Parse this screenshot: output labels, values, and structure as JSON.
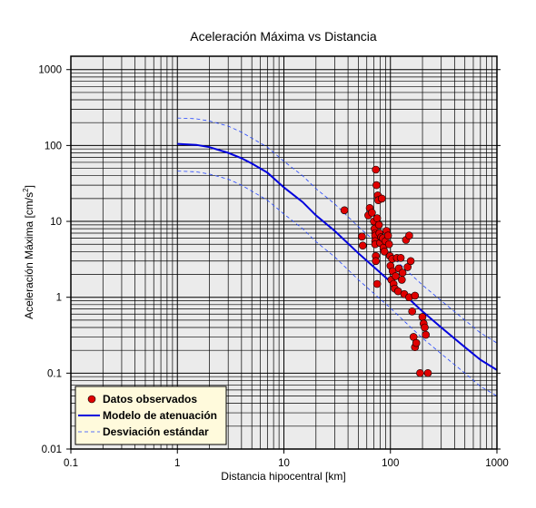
{
  "chart_data": {
    "type": "scatter",
    "title": "Aceleración Máxima vs Distancia",
    "xlabel": "Distancia hipocentral [km]",
    "ylabel": "Aceleración Máxima [cm/s",
    "ylabel_superscript": "2",
    "ylabel_suffix": "]",
    "x_scale": "log",
    "y_scale": "log",
    "xlim": [
      0.1,
      1000
    ],
    "ylim": [
      0.01,
      1500
    ],
    "grid": true,
    "legend_position": "bottom-left",
    "x_ticks": [
      {
        "value": 0.1,
        "label": "0.1"
      },
      {
        "value": 1,
        "label": "1"
      },
      {
        "value": 10,
        "label": "10"
      },
      {
        "value": 100,
        "label": "100"
      },
      {
        "value": 1000,
        "label": "1000"
      }
    ],
    "y_ticks": [
      {
        "value": 0.01,
        "label": "0.01"
      },
      {
        "value": 0.1,
        "label": "0.1"
      },
      {
        "value": 1,
        "label": "1"
      },
      {
        "value": 10,
        "label": "10"
      },
      {
        "value": 100,
        "label": "100"
      },
      {
        "value": 1000,
        "label": "1000"
      }
    ],
    "series": [
      {
        "name": "Datos observados",
        "kind": "scatter",
        "color": "#e00000",
        "points": [
          [
            37,
            14
          ],
          [
            54,
            6.3
          ],
          [
            55,
            4.8
          ],
          [
            62,
            12
          ],
          [
            64,
            15
          ],
          [
            67,
            13
          ],
          [
            70,
            10
          ],
          [
            71,
            8
          ],
          [
            72,
            7
          ],
          [
            72,
            6.5
          ],
          [
            72,
            5.5
          ],
          [
            72,
            5
          ],
          [
            73,
            48
          ],
          [
            73,
            3.5
          ],
          [
            73,
            3
          ],
          [
            74,
            30
          ],
          [
            75,
            11
          ],
          [
            75,
            1.5
          ],
          [
            76,
            22
          ],
          [
            77,
            19
          ],
          [
            78,
            9
          ],
          [
            79,
            7
          ],
          [
            80,
            5.2
          ],
          [
            82,
            6.2
          ],
          [
            83,
            20
          ],
          [
            85,
            6
          ],
          [
            86,
            4.5
          ],
          [
            88,
            4
          ],
          [
            90,
            5.5
          ],
          [
            92,
            7.5
          ],
          [
            95,
            6.5
          ],
          [
            97,
            5
          ],
          [
            99,
            3.5
          ],
          [
            100,
            2.6
          ],
          [
            102,
            1.7
          ],
          [
            104,
            3.2
          ],
          [
            105,
            2.2
          ],
          [
            107,
            1.5
          ],
          [
            110,
            1.3
          ],
          [
            112,
            1.9
          ],
          [
            115,
            3.3
          ],
          [
            118,
            1.2
          ],
          [
            120,
            2.4
          ],
          [
            125,
            3.3
          ],
          [
            128,
            1.7
          ],
          [
            130,
            2.1
          ],
          [
            135,
            1.1
          ],
          [
            140,
            5.7
          ],
          [
            145,
            2.5
          ],
          [
            150,
            6.5
          ],
          [
            155,
            3
          ],
          [
            160,
            0.65
          ],
          [
            165,
            0.3
          ],
          [
            170,
            0.22
          ],
          [
            175,
            0.25
          ],
          [
            190,
            0.1
          ],
          [
            200,
            0.55
          ],
          [
            205,
            0.45
          ],
          [
            210,
            0.4
          ],
          [
            215,
            0.32
          ],
          [
            225,
            0.1
          ],
          [
            150,
            1.0
          ],
          [
            170,
            1.05
          ]
        ]
      },
      {
        "name": "Modelo de atenuación",
        "kind": "line",
        "color": "#0000dd",
        "x": [
          1,
          1.5,
          2,
          3,
          4,
          5,
          7,
          10,
          15,
          20,
          30,
          50,
          70,
          100,
          150,
          200,
          300,
          500,
          700,
          1000
        ],
        "y": [
          105,
          102,
          95,
          80,
          68,
          58,
          44,
          28,
          18,
          12,
          7.5,
          3.8,
          2.5,
          1.6,
          0.95,
          0.65,
          0.4,
          0.22,
          0.15,
          0.11
        ]
      },
      {
        "name": "Desviación estándar",
        "kind": "dashed",
        "color": "#2244ff",
        "bounds": [
          {
            "x": [
              1,
              1.5,
              2,
              3,
              4,
              5,
              7,
              10,
              15,
              20,
              30,
              50,
              70,
              100,
              150,
              200,
              300,
              500,
              700,
              1000
            ],
            "y": [
              230,
              225,
              210,
              180,
              150,
              125,
              95,
              62,
              40,
              27,
              17,
              8.5,
              5.6,
              3.6,
              2.1,
              1.45,
              0.9,
              0.5,
              0.34,
              0.25
            ]
          },
          {
            "x": [
              1,
              1.5,
              2,
              3,
              4,
              5,
              7,
              10,
              15,
              20,
              30,
              50,
              70,
              100,
              150,
              200,
              300,
              500,
              700,
              1000
            ],
            "y": [
              46,
              45,
              42,
              36,
              30,
              25,
              19,
              12.5,
              8,
              5.4,
              3.4,
              1.7,
              1.12,
              0.72,
              0.42,
              0.29,
              0.18,
              0.1,
              0.067,
              0.05
            ]
          }
        ]
      }
    ]
  },
  "colors": {
    "plot_background": "#ebebeb",
    "grid": "#000000",
    "legend_background": "#fffadc",
    "marker_fill": "#e00000",
    "model_line": "#0000dd",
    "deviation_line": "#2244ff"
  }
}
